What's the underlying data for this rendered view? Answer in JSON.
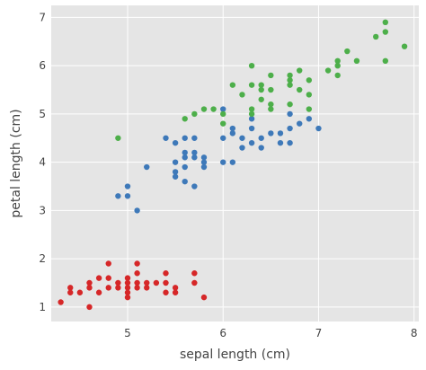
{
  "chart_data": {
    "type": "scatter",
    "xlabel": "sepal length (cm)",
    "ylabel": "petal length (cm)",
    "xlim": [
      4.2,
      8.05
    ],
    "ylim": [
      0.7,
      7.25
    ],
    "xticks": [
      5,
      6,
      7,
      8
    ],
    "yticks": [
      1,
      2,
      3,
      4,
      5,
      6,
      7
    ],
    "grid": true,
    "legend": "none",
    "plot_bgcolor": "#e5e5e5",
    "series": [
      {
        "color": "#d62728",
        "points": [
          [
            4.3,
            1.1
          ],
          [
            4.4,
            1.3
          ],
          [
            4.4,
            1.4
          ],
          [
            4.5,
            1.3
          ],
          [
            4.6,
            1.0
          ],
          [
            4.6,
            1.4
          ],
          [
            4.6,
            1.5
          ],
          [
            4.7,
            1.3
          ],
          [
            4.7,
            1.6
          ],
          [
            4.8,
            1.4
          ],
          [
            4.8,
            1.6
          ],
          [
            4.8,
            1.9
          ],
          [
            4.9,
            1.4
          ],
          [
            4.9,
            1.5
          ],
          [
            5.0,
            1.2
          ],
          [
            5.0,
            1.3
          ],
          [
            5.0,
            1.4
          ],
          [
            5.0,
            1.5
          ],
          [
            5.0,
            1.6
          ],
          [
            5.1,
            1.4
          ],
          [
            5.1,
            1.5
          ],
          [
            5.1,
            1.7
          ],
          [
            5.1,
            1.9
          ],
          [
            5.2,
            1.4
          ],
          [
            5.2,
            1.5
          ],
          [
            5.3,
            1.5
          ],
          [
            5.4,
            1.3
          ],
          [
            5.4,
            1.5
          ],
          [
            5.4,
            1.7
          ],
          [
            5.5,
            1.3
          ],
          [
            5.5,
            1.4
          ],
          [
            5.7,
            1.5
          ],
          [
            5.7,
            1.7
          ],
          [
            5.8,
            1.2
          ]
        ]
      },
      {
        "color": "#3e79b9",
        "points": [
          [
            4.9,
            3.3
          ],
          [
            5.0,
            3.3
          ],
          [
            5.0,
            3.5
          ],
          [
            5.1,
            3.0
          ],
          [
            5.2,
            3.9
          ],
          [
            5.4,
            4.5
          ],
          [
            5.5,
            3.7
          ],
          [
            5.5,
            3.8
          ],
          [
            5.5,
            4.0
          ],
          [
            5.5,
            4.4
          ],
          [
            5.6,
            3.6
          ],
          [
            5.6,
            3.9
          ],
          [
            5.6,
            4.1
          ],
          [
            5.6,
            4.2
          ],
          [
            5.6,
            4.5
          ],
          [
            5.7,
            3.5
          ],
          [
            5.7,
            4.1
          ],
          [
            5.7,
            4.2
          ],
          [
            5.7,
            4.5
          ],
          [
            5.8,
            3.9
          ],
          [
            5.8,
            4.0
          ],
          [
            5.8,
            4.1
          ],
          [
            6.0,
            4.0
          ],
          [
            6.0,
            4.5
          ],
          [
            6.0,
            5.1
          ],
          [
            6.1,
            4.0
          ],
          [
            6.1,
            4.6
          ],
          [
            6.1,
            4.7
          ],
          [
            6.2,
            4.3
          ],
          [
            6.2,
            4.5
          ],
          [
            6.3,
            4.4
          ],
          [
            6.3,
            4.7
          ],
          [
            6.3,
            4.9
          ],
          [
            6.4,
            4.3
          ],
          [
            6.4,
            4.5
          ],
          [
            6.5,
            4.6
          ],
          [
            6.6,
            4.4
          ],
          [
            6.6,
            4.6
          ],
          [
            6.7,
            4.4
          ],
          [
            6.7,
            4.7
          ],
          [
            6.7,
            5.0
          ],
          [
            6.8,
            4.8
          ],
          [
            6.9,
            4.9
          ],
          [
            7.0,
            4.7
          ]
        ]
      },
      {
        "color": "#4daf4a",
        "points": [
          [
            4.9,
            4.5
          ],
          [
            5.6,
            4.9
          ],
          [
            5.7,
            5.0
          ],
          [
            5.8,
            5.1
          ],
          [
            5.9,
            5.1
          ],
          [
            6.0,
            4.8
          ],
          [
            6.0,
            5.0
          ],
          [
            6.1,
            5.6
          ],
          [
            6.2,
            5.4
          ],
          [
            6.3,
            5.0
          ],
          [
            6.3,
            5.1
          ],
          [
            6.3,
            5.6
          ],
          [
            6.3,
            6.0
          ],
          [
            6.4,
            5.3
          ],
          [
            6.4,
            5.5
          ],
          [
            6.4,
            5.6
          ],
          [
            6.5,
            5.1
          ],
          [
            6.5,
            5.2
          ],
          [
            6.5,
            5.5
          ],
          [
            6.5,
            5.8
          ],
          [
            6.7,
            5.2
          ],
          [
            6.7,
            5.6
          ],
          [
            6.7,
            5.7
          ],
          [
            6.7,
            5.8
          ],
          [
            6.8,
            5.5
          ],
          [
            6.8,
            5.9
          ],
          [
            6.9,
            5.1
          ],
          [
            6.9,
            5.4
          ],
          [
            6.9,
            5.7
          ],
          [
            7.1,
            5.9
          ],
          [
            7.2,
            5.8
          ],
          [
            7.2,
            6.0
          ],
          [
            7.2,
            6.1
          ],
          [
            7.3,
            6.3
          ],
          [
            7.4,
            6.1
          ],
          [
            7.6,
            6.6
          ],
          [
            7.7,
            6.1
          ],
          [
            7.7,
            6.7
          ],
          [
            7.7,
            6.9
          ],
          [
            7.9,
            6.4
          ]
        ]
      }
    ]
  }
}
